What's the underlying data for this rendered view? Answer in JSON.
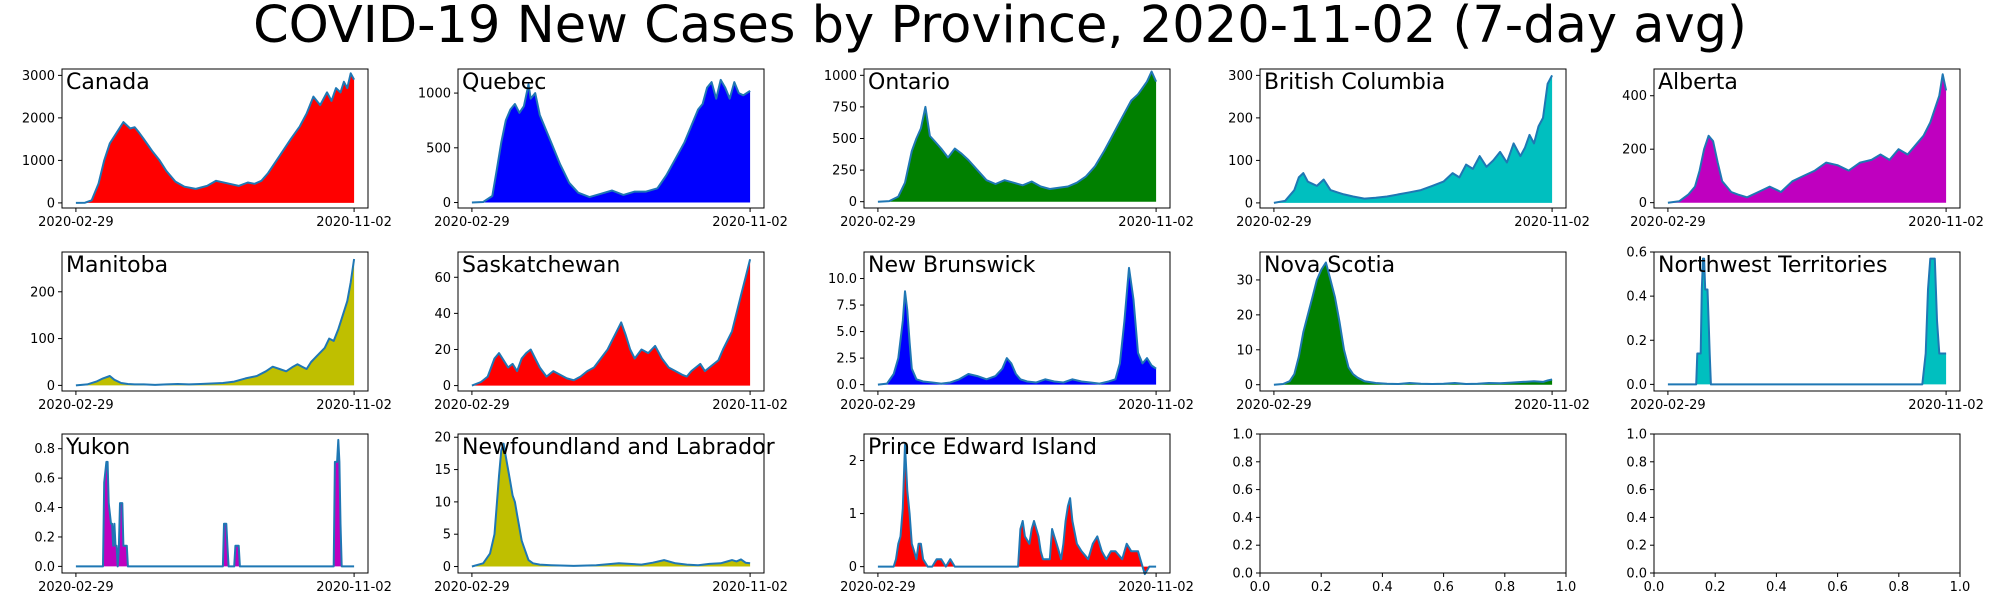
{
  "title": "COVID-19 New Cases by Province, 2020-11-02 (7-day avg)",
  "colors": {
    "line": "#1f77b4",
    "frame": "#000000"
  },
  "chart_data": [
    {
      "type": "area",
      "title": "Canada",
      "fill": "#ff0000",
      "x_ticks": [
        "2020-02-29",
        "2020-11-02"
      ],
      "y_ticks": [
        "0",
        "1000",
        "2000",
        "3000"
      ],
      "ylim": [
        -120,
        3150
      ],
      "x": [
        0,
        8,
        14,
        20,
        25,
        30,
        36,
        42,
        48,
        52,
        56,
        60,
        64,
        68,
        74,
        80,
        88,
        96,
        106,
        116,
        124,
        134,
        144,
        152,
        158,
        164,
        170,
        180,
        190,
        198,
        204,
        210,
        216,
        222,
        226,
        230,
        234,
        237,
        240,
        243,
        246
      ],
      "y": [
        0,
        5,
        60,
        450,
        1000,
        1400,
        1650,
        1900,
        1750,
        1780,
        1650,
        1500,
        1350,
        1200,
        1000,
        750,
        500,
        380,
        330,
        400,
        520,
        460,
        400,
        480,
        450,
        520,
        700,
        1100,
        1500,
        1800,
        2100,
        2500,
        2300,
        2600,
        2400,
        2700,
        2600,
        2850,
        2700,
        3050,
        2900
      ]
    },
    {
      "type": "area",
      "title": "Quebec",
      "fill": "#0000ff",
      "x_ticks": [
        "2020-02-29",
        "2020-11-02"
      ],
      "y_ticks": [
        "0",
        "500",
        "1000"
      ],
      "ylim": [
        -50,
        1220
      ],
      "x": [
        0,
        10,
        18,
        22,
        26,
        30,
        34,
        38,
        42,
        46,
        50,
        52,
        56,
        60,
        64,
        70,
        78,
        86,
        94,
        104,
        114,
        124,
        134,
        144,
        154,
        164,
        172,
        180,
        188,
        194,
        200,
        204,
        208,
        212,
        216,
        220,
        224,
        228,
        232,
        236,
        240,
        246
      ],
      "y": [
        0,
        5,
        60,
        300,
        550,
        750,
        850,
        900,
        820,
        880,
        1080,
        950,
        1000,
        800,
        700,
        550,
        350,
        180,
        90,
        50,
        80,
        110,
        70,
        100,
        100,
        130,
        250,
        400,
        550,
        700,
        850,
        900,
        1050,
        1100,
        950,
        1120,
        1050,
        950,
        1100,
        1000,
        980,
        1020
      ]
    },
    {
      "type": "area",
      "title": "Ontario",
      "fill": "#008000",
      "x_ticks": [
        "2020-02-29",
        "2020-11-02"
      ],
      "y_ticks": [
        "0",
        "250",
        "500",
        "750",
        "1000"
      ],
      "ylim": [
        -50,
        1050
      ],
      "x": [
        0,
        10,
        18,
        24,
        30,
        34,
        38,
        42,
        46,
        50,
        56,
        62,
        68,
        74,
        80,
        88,
        96,
        104,
        112,
        120,
        128,
        136,
        144,
        152,
        160,
        168,
        176,
        184,
        192,
        200,
        206,
        212,
        218,
        224,
        230,
        234,
        238,
        242,
        246
      ],
      "y": [
        0,
        5,
        40,
        150,
        400,
        500,
        580,
        750,
        520,
        480,
        420,
        350,
        420,
        380,
        330,
        250,
        170,
        140,
        170,
        150,
        130,
        160,
        120,
        100,
        110,
        120,
        150,
        200,
        280,
        400,
        500,
        600,
        700,
        800,
        850,
        900,
        950,
        1030,
        950
      ]
    },
    {
      "type": "area",
      "title": "British Columbia",
      "fill": "#00bfbf",
      "x_ticks": [
        "2020-02-29",
        "2020-11-02"
      ],
      "y_ticks": [
        "0",
        "100",
        "200",
        "300"
      ],
      "ylim": [
        -12,
        315
      ],
      "x": [
        0,
        10,
        18,
        22,
        26,
        30,
        34,
        38,
        44,
        50,
        56,
        62,
        70,
        80,
        90,
        100,
        110,
        120,
        130,
        140,
        150,
        158,
        164,
        170,
        176,
        182,
        188,
        194,
        200,
        206,
        212,
        218,
        222,
        226,
        230,
        234,
        238,
        242,
        246
      ],
      "y": [
        0,
        5,
        30,
        60,
        70,
        50,
        45,
        40,
        55,
        30,
        25,
        20,
        15,
        10,
        12,
        15,
        20,
        25,
        30,
        40,
        50,
        70,
        60,
        90,
        80,
        110,
        85,
        100,
        120,
        95,
        140,
        110,
        130,
        160,
        140,
        180,
        200,
        280,
        300
      ]
    },
    {
      "type": "area",
      "title": "Alberta",
      "fill": "#bf00bf",
      "x_ticks": [
        "2020-02-29",
        "2020-11-02"
      ],
      "y_ticks": [
        "0",
        "200",
        "400"
      ],
      "ylim": [
        -20,
        500
      ],
      "x": [
        0,
        10,
        18,
        24,
        28,
        32,
        36,
        40,
        44,
        48,
        52,
        56,
        62,
        70,
        80,
        90,
        100,
        110,
        120,
        130,
        140,
        150,
        160,
        170,
        180,
        188,
        196,
        204,
        212,
        220,
        226,
        232,
        236,
        240,
        243,
        246
      ],
      "y": [
        0,
        5,
        30,
        60,
        120,
        200,
        250,
        230,
        150,
        80,
        60,
        40,
        30,
        20,
        40,
        60,
        40,
        80,
        100,
        120,
        150,
        140,
        120,
        150,
        160,
        180,
        160,
        200,
        180,
        220,
        250,
        300,
        350,
        400,
        480,
        420
      ]
    },
    {
      "type": "area",
      "title": "Manitoba",
      "fill": "#bfbf00",
      "x_ticks": [
        "2020-02-29",
        "2020-11-02"
      ],
      "y_ticks": [
        "0",
        "100",
        "200"
      ],
      "ylim": [
        -12,
        285
      ],
      "x": [
        0,
        10,
        18,
        24,
        30,
        34,
        40,
        46,
        52,
        60,
        70,
        80,
        90,
        100,
        110,
        120,
        130,
        140,
        150,
        160,
        168,
        174,
        180,
        186,
        192,
        196,
        200,
        204,
        208,
        212,
        216,
        220,
        224,
        228,
        232,
        236,
        240,
        243,
        246
      ],
      "y": [
        0,
        2,
        8,
        15,
        20,
        12,
        5,
        3,
        2,
        2,
        1,
        2,
        3,
        2,
        3,
        4,
        5,
        8,
        15,
        20,
        30,
        40,
        35,
        30,
        40,
        45,
        40,
        35,
        50,
        60,
        70,
        80,
        100,
        95,
        120,
        150,
        180,
        220,
        270
      ]
    },
    {
      "type": "area",
      "title": "Saskatchewan",
      "fill": "#ff0000",
      "x_ticks": [
        "2020-02-29",
        "2020-11-02"
      ],
      "y_ticks": [
        "0",
        "20",
        "40",
        "60"
      ],
      "ylim": [
        -3,
        74
      ],
      "x": [
        0,
        8,
        14,
        20,
        24,
        28,
        32,
        36,
        40,
        44,
        48,
        52,
        56,
        60,
        66,
        72,
        78,
        84,
        90,
        96,
        102,
        108,
        114,
        120,
        124,
        128,
        132,
        136,
        140,
        144,
        150,
        156,
        162,
        168,
        174,
        180,
        186,
        190,
        194,
        198,
        202,
        206,
        210,
        214,
        218,
        222,
        226,
        230,
        234,
        238,
        242,
        246
      ],
      "y": [
        0,
        2,
        5,
        15,
        18,
        14,
        10,
        12,
        8,
        15,
        18,
        20,
        15,
        10,
        5,
        8,
        6,
        4,
        3,
        5,
        8,
        10,
        15,
        20,
        25,
        30,
        35,
        28,
        20,
        15,
        20,
        18,
        22,
        15,
        10,
        8,
        6,
        5,
        8,
        10,
        12,
        8,
        10,
        12,
        14,
        20,
        25,
        30,
        40,
        50,
        60,
        70
      ]
    },
    {
      "type": "area",
      "title": "New Brunswick",
      "fill": "#0000ff",
      "x_ticks": [
        "2020-02-29",
        "2020-11-02"
      ],
      "y_ticks": [
        "0.0",
        "2.5",
        "5.0",
        "7.5",
        "10.0"
      ],
      "ylim": [
        -0.6,
        12.5
      ],
      "x": [
        0,
        8,
        14,
        18,
        22,
        24,
        26,
        28,
        30,
        34,
        40,
        48,
        56,
        64,
        72,
        80,
        88,
        96,
        104,
        110,
        114,
        118,
        122,
        126,
        132,
        140,
        148,
        156,
        164,
        172,
        180,
        188,
        196,
        204,
        210,
        214,
        218,
        222,
        226,
        230,
        234,
        238,
        242,
        246
      ],
      "y": [
        0,
        0.1,
        1,
        2.5,
        6,
        8.8,
        7,
        4,
        1.5,
        0.5,
        0.3,
        0.2,
        0.1,
        0.2,
        0.5,
        1,
        0.8,
        0.5,
        0.8,
        1.5,
        2.5,
        2,
        1,
        0.5,
        0.3,
        0.2,
        0.5,
        0.3,
        0.2,
        0.5,
        0.3,
        0.2,
        0.1,
        0.3,
        0.5,
        2,
        6,
        11,
        8,
        3,
        2,
        2.5,
        1.8,
        1.5
      ]
    },
    {
      "type": "area",
      "title": "Nova Scotia",
      "fill": "#008000",
      "x_ticks": [
        "2020-02-29",
        "2020-11-02"
      ],
      "y_ticks": [
        "0",
        "10",
        "20",
        "30"
      ],
      "ylim": [
        -1.8,
        38
      ],
      "x": [
        0,
        8,
        14,
        18,
        22,
        26,
        30,
        34,
        38,
        42,
        46,
        50,
        54,
        58,
        62,
        66,
        70,
        74,
        80,
        90,
        100,
        110,
        120,
        130,
        140,
        150,
        160,
        170,
        180,
        190,
        200,
        210,
        220,
        230,
        238,
        242,
        246
      ],
      "y": [
        0,
        0.2,
        1,
        3,
        8,
        15,
        20,
        25,
        30,
        33,
        35,
        30,
        25,
        18,
        10,
        5,
        3,
        2,
        1,
        0.5,
        0.3,
        0.2,
        0.5,
        0.3,
        0.2,
        0.3,
        0.5,
        0.2,
        0.3,
        0.5,
        0.4,
        0.6,
        0.8,
        1,
        0.8,
        1.2,
        1.5
      ]
    },
    {
      "type": "area",
      "title": "Northwest Territories",
      "fill": "#00bfbf",
      "x_ticks": [
        "2020-02-29",
        "2020-11-02"
      ],
      "y_ticks": [
        "0.0",
        "0.2",
        "0.4",
        "0.6"
      ],
      "ylim": [
        -0.03,
        0.6
      ],
      "x": [
        0,
        10,
        20,
        25,
        26,
        28,
        29,
        30,
        31,
        32,
        33,
        34,
        35,
        36,
        37,
        38,
        39,
        40,
        60,
        100,
        150,
        200,
        225,
        228,
        230,
        232,
        234,
        236,
        238,
        240,
        242,
        244,
        246
      ],
      "y": [
        0,
        0,
        0,
        0,
        0.14,
        0.14,
        0.14,
        0.43,
        0.57,
        0.57,
        0.43,
        0.43,
        0.43,
        0.29,
        0.14,
        0,
        0,
        0,
        0,
        0,
        0,
        0,
        0,
        0.14,
        0.43,
        0.57,
        0.57,
        0.57,
        0.29,
        0.14,
        0.14,
        0.14,
        0.14
      ]
    },
    {
      "type": "area",
      "title": "Yukon",
      "fill": "#bf00bf",
      "x_ticks": [
        "2020-02-29",
        "2020-11-02"
      ],
      "y_ticks": [
        "0.0",
        "0.2",
        "0.4",
        "0.6",
        "0.8"
      ],
      "ylim": [
        -0.045,
        0.9
      ],
      "x": [
        0,
        20,
        24,
        25,
        27,
        28,
        29,
        31,
        32,
        33,
        34,
        35,
        36,
        37,
        38,
        39,
        40,
        41,
        42,
        43,
        44,
        45,
        46,
        47,
        48,
        130,
        131,
        132,
        133,
        134,
        135,
        140,
        141,
        142,
        144,
        145,
        146,
        150,
        228,
        229,
        230,
        231,
        232,
        233,
        234,
        235,
        236,
        246
      ],
      "y": [
        0,
        0,
        0,
        0.57,
        0.71,
        0.71,
        0.43,
        0.29,
        0.29,
        0.14,
        0.29,
        0.14,
        0.14,
        0,
        0.14,
        0.43,
        0.43,
        0.43,
        0.14,
        0.14,
        0.14,
        0.14,
        0,
        0,
        0,
        0,
        0.29,
        0.29,
        0.29,
        0.14,
        0,
        0,
        0.14,
        0.14,
        0.14,
        0,
        0,
        0,
        0,
        0.71,
        0.71,
        0.71,
        0.86,
        0.71,
        0.29,
        0,
        0,
        0
      ]
    },
    {
      "type": "area",
      "title": "Newfoundland and Labrador",
      "fill": "#bfbf00",
      "x_ticks": [
        "2020-02-29",
        "2020-11-02"
      ],
      "y_ticks": [
        "0",
        "5",
        "10",
        "15",
        "20"
      ],
      "ylim": [
        -1,
        20.5
      ],
      "x": [
        0,
        10,
        16,
        20,
        24,
        26,
        28,
        30,
        32,
        34,
        36,
        38,
        40,
        42,
        44,
        46,
        48,
        50,
        54,
        60,
        70,
        90,
        110,
        130,
        150,
        160,
        170,
        180,
        190,
        200,
        210,
        220,
        226,
        230,
        234,
        238,
        242,
        246
      ],
      "y": [
        0,
        0.5,
        2,
        5,
        14,
        18,
        19,
        17,
        15,
        13,
        11,
        10,
        8,
        6,
        4,
        3,
        2,
        1,
        0.5,
        0.3,
        0.2,
        0.1,
        0.2,
        0.5,
        0.3,
        0.6,
        1,
        0.5,
        0.3,
        0.2,
        0.4,
        0.5,
        0.8,
        1,
        0.8,
        1.1,
        0.6,
        0.5
      ]
    },
    {
      "type": "area",
      "title": "Prince Edward Island",
      "fill": "#ff0000",
      "x_ticks": [
        "2020-02-29",
        "2020-11-02"
      ],
      "y_ticks": [
        "0",
        "1",
        "2"
      ],
      "ylim": [
        -0.12,
        2.5
      ],
      "x": [
        0,
        14,
        16,
        18,
        20,
        22,
        24,
        26,
        28,
        30,
        32,
        34,
        36,
        38,
        40,
        44,
        48,
        52,
        56,
        60,
        64,
        68,
        76,
        100,
        124,
        126,
        128,
        130,
        134,
        136,
        138,
        142,
        144,
        146,
        152,
        154,
        156,
        158,
        160,
        162,
        164,
        166,
        168,
        170,
        172,
        176,
        180,
        186,
        190,
        194,
        198,
        202,
        206,
        210,
        216,
        220,
        224,
        228,
        230,
        232,
        236,
        240,
        246
      ],
      "y": [
        0,
        0,
        0.14,
        0.43,
        0.57,
        1.1,
        2.3,
        1.43,
        1,
        0.43,
        0.29,
        0.14,
        0.43,
        0.43,
        0.14,
        0,
        0,
        0.14,
        0.14,
        0,
        0.14,
        0,
        0,
        0,
        0,
        0.71,
        0.86,
        0.57,
        0.43,
        0.71,
        0.86,
        0.57,
        0.29,
        0.14,
        0.14,
        0.71,
        0.57,
        0.43,
        0.29,
        0.14,
        0.43,
        0.86,
        1.14,
        1.29,
        0.86,
        0.43,
        0.29,
        0.14,
        0.43,
        0.57,
        0.29,
        0.14,
        0.29,
        0.29,
        0.14,
        0.43,
        0.29,
        0.29,
        0.29,
        0.14,
        -0.14,
        0,
        0
      ]
    },
    {
      "type": "area",
      "title": "",
      "fill": "none",
      "x_ticks": [
        "0.0",
        "0.2",
        "0.4",
        "0.6",
        "0.8",
        "1.0"
      ],
      "y_ticks": [
        "0.0",
        "0.2",
        "0.4",
        "0.6",
        "0.8",
        "1.0"
      ],
      "xlim": [
        0,
        1
      ],
      "ylim": [
        0,
        1
      ],
      "x": [],
      "y": []
    },
    {
      "type": "area",
      "title": "",
      "fill": "none",
      "x_ticks": [
        "0.0",
        "0.2",
        "0.4",
        "0.6",
        "0.8",
        "1.0"
      ],
      "y_ticks": [
        "0.0",
        "0.2",
        "0.4",
        "0.6",
        "0.8",
        "1.0"
      ],
      "xlim": [
        0,
        1
      ],
      "ylim": [
        0,
        1
      ],
      "x": [],
      "y": []
    }
  ]
}
